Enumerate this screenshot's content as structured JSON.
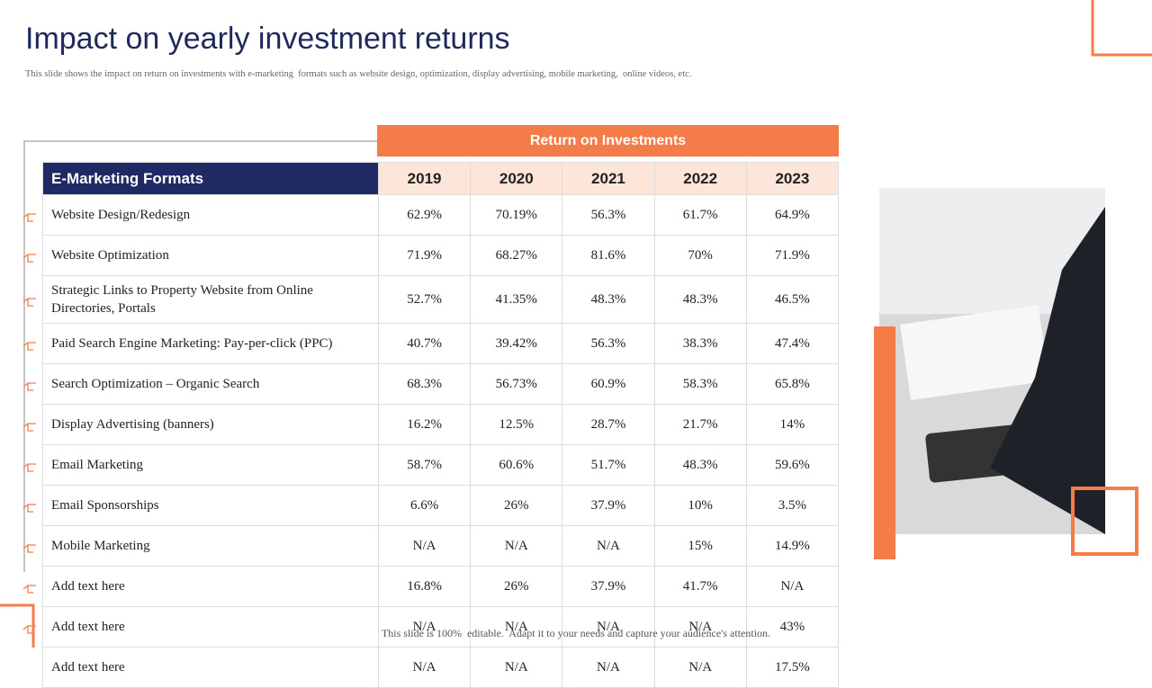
{
  "header": {
    "title": "Impact on yearly investment returns",
    "subtitle": "This slide shows the impact on return on investments with e-marketing  formats such as website design, optimization, display advertising, mobile marketing,  online videos, etc."
  },
  "table": {
    "group_header": "Return on Investments",
    "columns": [
      "E-Marketing Formats",
      "2019",
      "2020",
      "2021",
      "2022",
      "2023"
    ],
    "rows": [
      [
        "Website Design/Redesign",
        "62.9%",
        "70.19%",
        "56.3%",
        "61.7%",
        "64.9%"
      ],
      [
        "Website Optimization",
        "71.9%",
        "68.27%",
        "81.6%",
        "70%",
        "71.9%"
      ],
      [
        "Strategic  Links  to  Property  Website  from  Online  Directories,  Portals",
        "52.7%",
        "41.35%",
        "48.3%",
        "48.3%",
        "46.5%"
      ],
      [
        "Paid  Search  Engine  Marketing:  Pay-per-click  (PPC)",
        "40.7%",
        "39.42%",
        "56.3%",
        "38.3%",
        "47.4%"
      ],
      [
        "Search  Optimization  – Organic  Search",
        "68.3%",
        "56.73%",
        "60.9%",
        "58.3%",
        "65.8%"
      ],
      [
        "Display  Advertising  (banners)",
        "16.2%",
        "12.5%",
        "28.7%",
        "21.7%",
        "14%"
      ],
      [
        "Email  Marketing",
        "58.7%",
        "60.6%",
        "51.7%",
        "48.3%",
        "59.6%"
      ],
      [
        "Email  Sponsorships",
        "6.6%",
        "26%",
        "37.9%",
        "10%",
        "3.5%"
      ],
      [
        "Mobile  Marketing",
        "N/A",
        "N/A",
        "N/A",
        "15%",
        "14.9%"
      ],
      [
        "Add text  here",
        "16.8%",
        "26%",
        "37.9%",
        "41.7%",
        "N/A"
      ],
      [
        "Add text  here",
        "N/A",
        "N/A",
        "N/A",
        "N/A",
        "43%"
      ],
      [
        "Add text  here",
        "N/A",
        "N/A",
        "N/A",
        "N/A",
        "17.5%"
      ]
    ]
  },
  "footer": "This slide is 100%  editable.  Adapt it to your needs and capture your audience's attention."
}
